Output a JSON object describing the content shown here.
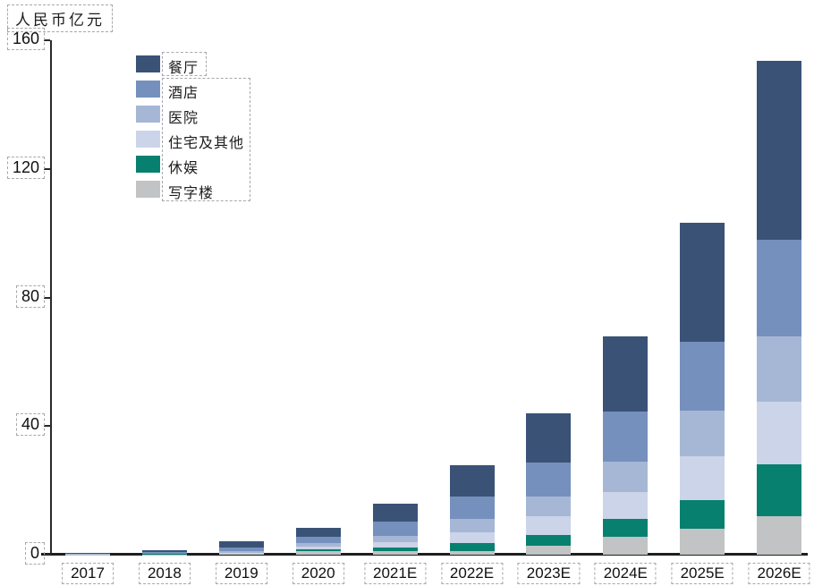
{
  "chart_data": {
    "type": "bar",
    "stacked": true,
    "title": "人民币亿元",
    "ylabel": "人民币亿元",
    "xlabel": "",
    "ylim": [
      0,
      160
    ],
    "yticks": [
      0,
      40,
      80,
      120,
      160
    ],
    "grid": false,
    "legend_position": "upper-left-inside",
    "categories": [
      "2017",
      "2018",
      "2019",
      "2020",
      "2021E",
      "2022E",
      "2023E",
      "2024E",
      "2025E",
      "2026E"
    ],
    "series": [
      {
        "name": "餐厅",
        "slug": "restaurant",
        "color": "#3A5276",
        "values": [
          0.2,
          0.6,
          2.0,
          2.8,
          5.6,
          9.6,
          15.5,
          23.5,
          37.0,
          55.5
        ]
      },
      {
        "name": "酒店",
        "slug": "hotel",
        "color": "#7590BC",
        "values": [
          0.15,
          0.4,
          1.2,
          2.0,
          4.3,
          7.2,
          10.5,
          15.5,
          21.5,
          30.0
        ]
      },
      {
        "name": "医院",
        "slug": "hospital",
        "color": "#A6B7D6",
        "values": [
          0.05,
          0.15,
          0.5,
          1.1,
          2.1,
          4.0,
          6.0,
          9.5,
          14.0,
          20.5
        ]
      },
      {
        "name": "住宅及其他",
        "slug": "residential-other",
        "color": "#CBD4E8",
        "values": [
          0.04,
          0.1,
          0.3,
          0.9,
          1.6,
          3.5,
          6.0,
          8.5,
          13.7,
          19.5
        ]
      },
      {
        "name": "休娱",
        "slug": "leisure",
        "color": "#08806F",
        "values": [
          0.03,
          0.07,
          0.15,
          0.6,
          1.0,
          2.3,
          3.2,
          5.5,
          8.8,
          16.0
        ]
      },
      {
        "name": "写字楼",
        "slug": "office",
        "color": "#C1C3C4",
        "values": [
          0.03,
          0.08,
          0.15,
          1.0,
          1.2,
          1.2,
          2.9,
          5.5,
          8.2,
          12.0
        ]
      }
    ]
  },
  "colors": {
    "axis": "#2A2A2A",
    "annotation_dash": "#A4A8AD",
    "text": "#101010"
  }
}
